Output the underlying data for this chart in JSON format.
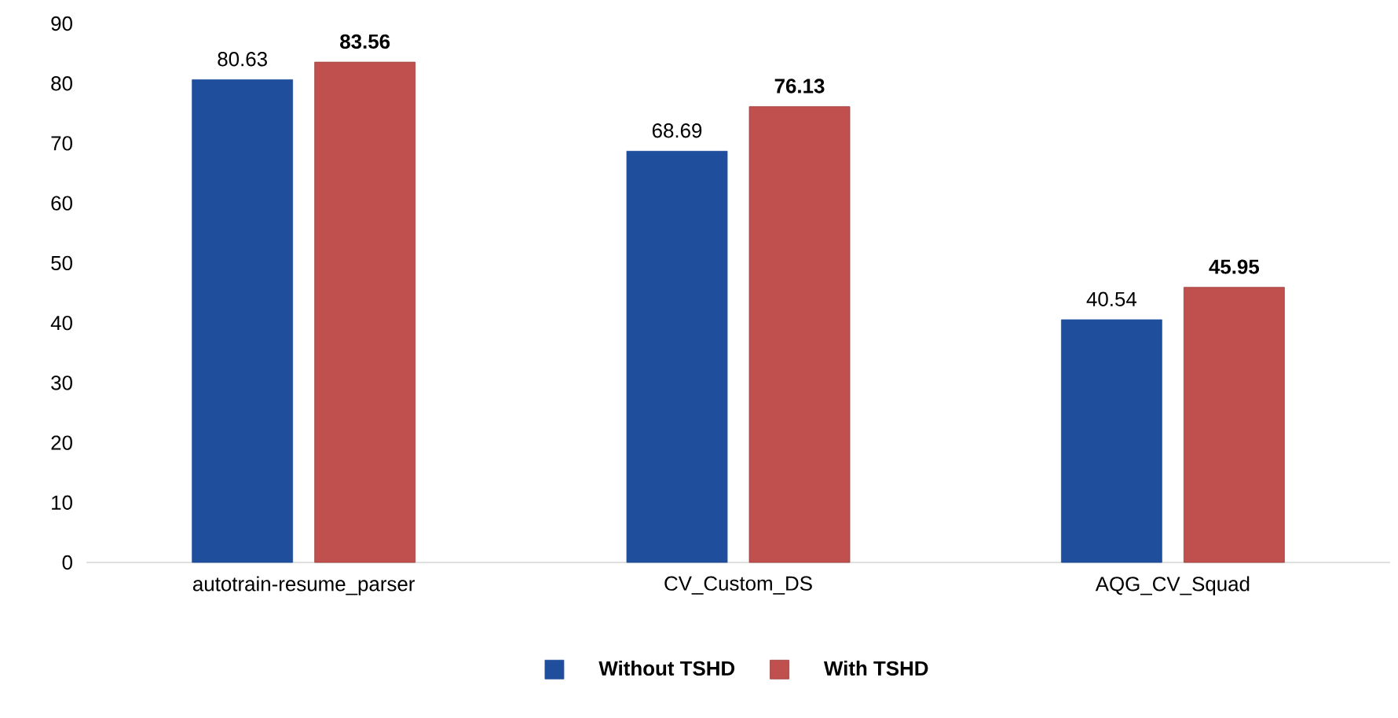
{
  "chart_data": {
    "type": "bar",
    "categories": [
      "autotrain-resume_parser",
      "CV_Custom_DS",
      "AQG_CV_Squad"
    ],
    "series": [
      {
        "name": "Without TSHD",
        "color": "#1f4f9c",
        "values": [
          80.63,
          68.69,
          40.54
        ],
        "value_labels": [
          "80.63",
          "68.69",
          "40.54"
        ]
      },
      {
        "name": "With TSHD",
        "color": "#c0504d",
        "values": [
          83.56,
          76.13,
          45.95
        ],
        "value_labels": [
          "83.56",
          "76.13",
          "45.95"
        ]
      }
    ],
    "ylim": [
      0,
      90
    ],
    "yticks": [
      0,
      10,
      20,
      30,
      40,
      50,
      60,
      70,
      80,
      90
    ],
    "grid": false,
    "legend": "bottom"
  }
}
